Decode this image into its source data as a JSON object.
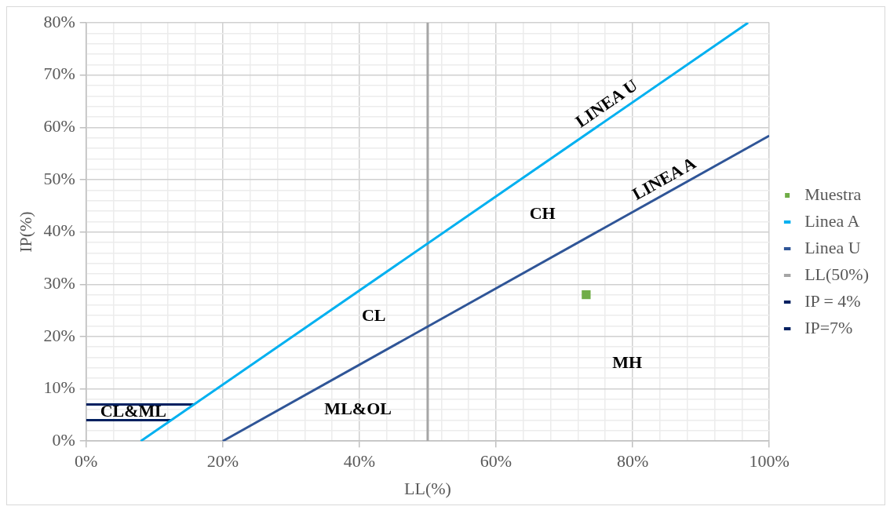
{
  "chart_data": {
    "type": "scatter",
    "xlabel": "LL(%)",
    "ylabel": "IP(%)",
    "xlim": [
      0,
      100
    ],
    "ylim": [
      0,
      80
    ],
    "xticks": [
      {
        "value": 0,
        "label": "0%"
      },
      {
        "value": 4,
        "label": null
      },
      {
        "value": 8,
        "label": null
      },
      {
        "value": 12,
        "label": null
      },
      {
        "value": 16,
        "label": null
      },
      {
        "value": 20,
        "label": "20%"
      },
      {
        "value": 24,
        "label": null
      },
      {
        "value": 28,
        "label": null
      },
      {
        "value": 32,
        "label": null
      },
      {
        "value": 36,
        "label": null
      },
      {
        "value": 40,
        "label": "40%"
      },
      {
        "value": 44,
        "label": null
      },
      {
        "value": 48,
        "label": null
      },
      {
        "value": 52,
        "label": null
      },
      {
        "value": 56,
        "label": null
      },
      {
        "value": 60,
        "label": "60%"
      },
      {
        "value": 64,
        "label": null
      },
      {
        "value": 68,
        "label": null
      },
      {
        "value": 72,
        "label": null
      },
      {
        "value": 76,
        "label": null
      },
      {
        "value": 80,
        "label": "80%"
      },
      {
        "value": 84,
        "label": null
      },
      {
        "value": 88,
        "label": null
      },
      {
        "value": 92,
        "label": null
      },
      {
        "value": 96,
        "label": null
      },
      {
        "value": 100,
        "label": "100%"
      }
    ],
    "yticks": [
      {
        "value": 0,
        "label": "0%"
      },
      {
        "value": 2,
        "label": null
      },
      {
        "value": 4,
        "label": null
      },
      {
        "value": 6,
        "label": null
      },
      {
        "value": 8,
        "label": null
      },
      {
        "value": 10,
        "label": "10%"
      },
      {
        "value": 12,
        "label": null
      },
      {
        "value": 14,
        "label": null
      },
      {
        "value": 16,
        "label": null
      },
      {
        "value": 18,
        "label": null
      },
      {
        "value": 20,
        "label": "20%"
      },
      {
        "value": 22,
        "label": null
      },
      {
        "value": 24,
        "label": null
      },
      {
        "value": 26,
        "label": null
      },
      {
        "value": 28,
        "label": null
      },
      {
        "value": 30,
        "label": "30%"
      },
      {
        "value": 32,
        "label": null
      },
      {
        "value": 34,
        "label": null
      },
      {
        "value": 36,
        "label": null
      },
      {
        "value": 38,
        "label": null
      },
      {
        "value": 40,
        "label": "40%"
      },
      {
        "value": 42,
        "label": null
      },
      {
        "value": 44,
        "label": null
      },
      {
        "value": 46,
        "label": null
      },
      {
        "value": 48,
        "label": null
      },
      {
        "value": 50,
        "label": "50%"
      },
      {
        "value": 52,
        "label": null
      },
      {
        "value": 54,
        "label": null
      },
      {
        "value": 56,
        "label": null
      },
      {
        "value": 58,
        "label": null
      },
      {
        "value": 60,
        "label": "60%"
      },
      {
        "value": 62,
        "label": null
      },
      {
        "value": 64,
        "label": null
      },
      {
        "value": 66,
        "label": null
      },
      {
        "value": 68,
        "label": null
      },
      {
        "value": 70,
        "label": "70%"
      },
      {
        "value": 72,
        "label": null
      },
      {
        "value": 74,
        "label": null
      },
      {
        "value": 76,
        "label": null
      },
      {
        "value": 78,
        "label": null
      },
      {
        "value": 80,
        "label": "80%"
      }
    ],
    "grid": true,
    "legend": "right",
    "series": [
      {
        "name": "Muestra",
        "type": "scatter",
        "color": "#70ad47",
        "marker": "square",
        "x": [
          73.2
        ],
        "values": [
          28
        ]
      },
      {
        "name": "Linea A",
        "type": "line",
        "color": "#00b0f0",
        "marker": "none",
        "x": [
          8,
          96.9
        ],
        "values": [
          0,
          80
        ]
      },
      {
        "name": "Linea U",
        "type": "line",
        "color": "#2f5597",
        "marker": "none",
        "x": [
          20,
          100
        ],
        "values": [
          0,
          58.4
        ]
      },
      {
        "name": "LL(50%)",
        "type": "line",
        "color": "#a6a6a6",
        "marker": "none",
        "x": [
          50,
          50
        ],
        "values": [
          0,
          80
        ]
      },
      {
        "name": "IP = 4%",
        "type": "line",
        "color": "#002060",
        "marker": "none",
        "x": [
          0,
          12.4
        ],
        "values": [
          4,
          4
        ]
      },
      {
        "name": "IP=7%",
        "type": "line",
        "color": "#002060",
        "marker": "none",
        "x": [
          0,
          15.8
        ],
        "values": [
          7,
          7
        ]
      }
    ],
    "annotations": [
      {
        "text": "LINEA U",
        "x": 77.3,
        "y": 62.4
      },
      {
        "text": "LINEA A",
        "x": 85.6,
        "y": 47.9
      },
      "CH",
      "CL",
      "MH",
      "ML&OL",
      "CL&ML"
    ]
  }
}
